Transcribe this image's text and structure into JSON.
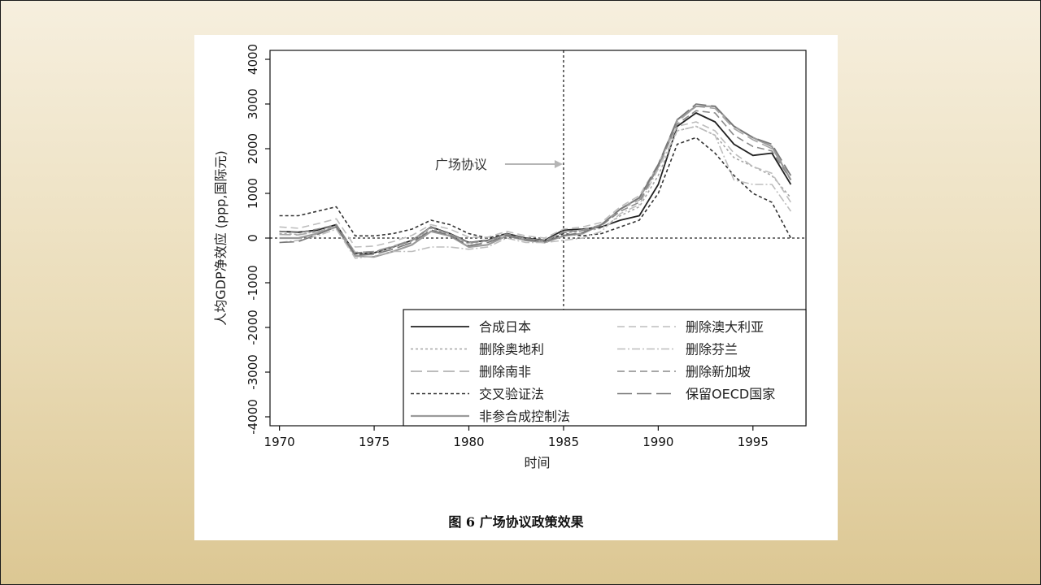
{
  "caption": "图 6  广场协议政策效果",
  "chart_data": {
    "type": "line",
    "xlabel": "时间",
    "ylabel": "人均GDP净效应 (ppp,国际元)",
    "xlim": [
      1969.5,
      1997.8
    ],
    "ylim": [
      -4200,
      4200
    ],
    "xticks": [
      1970,
      1975,
      1980,
      1985,
      1990,
      1995
    ],
    "yticks": [
      -4000,
      -3000,
      -2000,
      -1000,
      0,
      1000,
      2000,
      3000,
      4000
    ],
    "reference_lines": {
      "x": 1985,
      "y": 0
    },
    "annotation": {
      "text": "广场协议",
      "x": 1985,
      "y": 1000
    },
    "legend_position": "bottom-right",
    "x": [
      1970,
      1971,
      1972,
      1973,
      1974,
      1975,
      1976,
      1977,
      1978,
      1979,
      1980,
      1981,
      1982,
      1983,
      1984,
      1985,
      1986,
      1987,
      1988,
      1989,
      1990,
      1991,
      1992,
      1993,
      1994,
      1995,
      1996,
      1997
    ],
    "series": [
      {
        "name": "合成日本",
        "color": "#222222",
        "dash": "",
        "width": 1.8,
        "values": [
          150,
          130,
          180,
          300,
          -350,
          -330,
          -200,
          -50,
          250,
          100,
          -100,
          -50,
          100,
          0,
          -50,
          180,
          200,
          250,
          400,
          500,
          1200,
          2500,
          2800,
          2600,
          2100,
          1850,
          1900,
          1200
        ]
      },
      {
        "name": "删除奥地利",
        "color": "#a6a6a6",
        "dash": "3 3",
        "width": 1.6,
        "values": [
          100,
          80,
          150,
          250,
          -350,
          -320,
          -210,
          -70,
          220,
          70,
          -130,
          -70,
          80,
          -30,
          -70,
          120,
          150,
          220,
          500,
          700,
          1400,
          2400,
          2500,
          2300,
          1800,
          1600,
          1400,
          900
        ]
      },
      {
        "name": "删除南非",
        "color": "#a6a6a6",
        "dash": "14 6",
        "width": 1.6,
        "values": [
          80,
          70,
          140,
          260,
          -320,
          -300,
          -180,
          -40,
          240,
          90,
          -110,
          -60,
          90,
          -10,
          -60,
          140,
          180,
          300,
          650,
          850,
          1650,
          2600,
          2950,
          2900,
          2450,
          2200,
          2000,
          1400
        ]
      },
      {
        "name": "交叉验证法",
        "color": "#333333",
        "dash": "4 3",
        "width": 1.6,
        "values": [
          500,
          500,
          600,
          700,
          50,
          50,
          100,
          200,
          400,
          300,
          100,
          0,
          100,
          0,
          -100,
          100,
          50,
          100,
          250,
          400,
          1000,
          2100,
          2250,
          1900,
          1400,
          1000,
          800,
          0
        ]
      },
      {
        "name": "非参合成控制法",
        "color": "#9a9a9a",
        "dash": "",
        "width": 2.2,
        "values": [
          0,
          0,
          100,
          250,
          -400,
          -420,
          -300,
          -150,
          150,
          50,
          -200,
          -150,
          50,
          -50,
          -100,
          50,
          100,
          300,
          650,
          900,
          1600,
          2650,
          2950,
          2950,
          2500,
          2250,
          2050,
          1300
        ]
      },
      {
        "name": "删除澳大利亚",
        "color": "#bdbdbd",
        "dash": "9 5",
        "width": 1.6,
        "values": [
          250,
          220,
          320,
          430,
          -200,
          -180,
          -80,
          60,
          300,
          200,
          20,
          20,
          150,
          50,
          0,
          200,
          250,
          350,
          700,
          950,
          1650,
          2500,
          2600,
          2400,
          1900,
          1600,
          1450,
          800
        ]
      },
      {
        "name": "删除芬兰",
        "color": "#bdbdbd",
        "dash": "10 3 2 3",
        "width": 1.6,
        "values": [
          -100,
          -50,
          50,
          200,
          -450,
          -400,
          -300,
          -300,
          -200,
          -200,
          -250,
          -200,
          0,
          -100,
          -100,
          -50,
          0,
          150,
          550,
          750,
          1550,
          2400,
          2500,
          2300,
          1300,
          1200,
          1200,
          600
        ]
      },
      {
        "name": "删除新加坡",
        "color": "#8a8a8a",
        "dash": "9 5",
        "width": 1.6,
        "values": [
          150,
          120,
          200,
          300,
          -330,
          -310,
          -190,
          -50,
          240,
          90,
          -100,
          -60,
          90,
          -10,
          -60,
          130,
          170,
          280,
          600,
          800,
          1600,
          2550,
          2850,
          2800,
          2300,
          2050,
          1950,
          1300
        ]
      },
      {
        "name": "保留OECD国家",
        "color": "#777777",
        "dash": "18 6",
        "width": 1.6,
        "values": [
          -100,
          -80,
          80,
          250,
          -380,
          -360,
          -250,
          -100,
          180,
          60,
          -170,
          -100,
          60,
          -40,
          -80,
          60,
          120,
          300,
          650,
          900,
          1650,
          2650,
          3000,
          2950,
          2500,
          2250,
          2100,
          1400
        ]
      }
    ]
  }
}
